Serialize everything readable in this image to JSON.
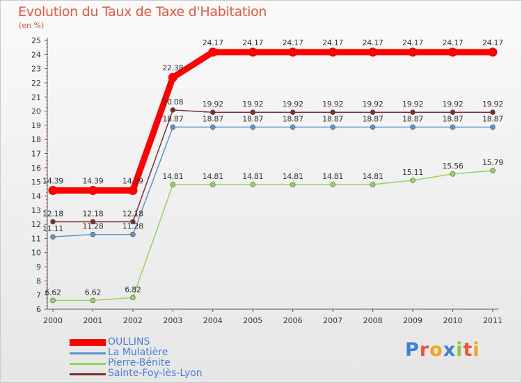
{
  "title": "Evolution du Taux de Taxe d'Habitation",
  "unit_label": "(en %)",
  "logo": {
    "letters": [
      "P",
      "r",
      "o",
      "x",
      "i",
      "t",
      "i"
    ],
    "colors": [
      "#3b7fd6",
      "#e8573a",
      "#f2a31b",
      "#3b7fd6",
      "#8cc63f",
      "#e8573a",
      "#f2a31b"
    ]
  },
  "chart_data": {
    "type": "line",
    "x": [
      "2000",
      "2001",
      "2002",
      "2003",
      "2004",
      "2005",
      "2006",
      "2007",
      "2008",
      "2009",
      "2010",
      "2011"
    ],
    "ylim": [
      6,
      25
    ],
    "yticks": [
      6,
      7,
      8,
      9,
      10,
      11,
      12,
      13,
      14,
      15,
      16,
      17,
      18,
      19,
      20,
      21,
      22,
      23,
      24,
      25
    ],
    "grid": false,
    "legend_position": "bottom-left",
    "series": [
      {
        "name": "OULLINS",
        "color": "#ff0000",
        "values": [
          14.39,
          14.39,
          14.39,
          22.38,
          24.17,
          24.17,
          24.17,
          24.17,
          24.17,
          24.17,
          24.17,
          24.17
        ],
        "labels": [
          "14.39",
          "14.39",
          "14.39",
          "22.38",
          "24.17",
          "24.17",
          "24.17",
          "24.17",
          "24.17",
          "24.17",
          "24.17",
          "24.17"
        ]
      },
      {
        "name": "La Mulatière",
        "color": "#5b93c5",
        "values": [
          11.11,
          11.28,
          11.28,
          18.87,
          18.87,
          18.87,
          18.87,
          18.87,
          18.87,
          18.87,
          18.87,
          18.87
        ],
        "labels": [
          "11.11",
          "11.28",
          "11.28",
          "18.87",
          "18.87",
          "18.87",
          "18.87",
          "18.87",
          "18.87",
          "18.87",
          "18.87",
          "18.87"
        ]
      },
      {
        "name": "Pierre-Bénite",
        "color": "#97d45b",
        "values": [
          6.62,
          6.62,
          6.82,
          14.81,
          14.81,
          14.81,
          14.81,
          14.81,
          14.81,
          15.11,
          15.56,
          15.79
        ],
        "labels": [
          "6.62",
          "6.62",
          "6.82",
          "14.81",
          "14.81",
          "14.81",
          "14.81",
          "14.81",
          "14.81",
          "15.11",
          "15.56",
          "15.79"
        ]
      },
      {
        "name": "Sainte-Foy-lès-Lyon",
        "color": "#7a2e2e",
        "values": [
          12.18,
          12.18,
          12.18,
          20.08,
          19.92,
          19.92,
          19.92,
          19.92,
          19.92,
          19.92,
          19.92,
          19.92
        ],
        "labels": [
          "12.18",
          "12.18",
          "12.18",
          "20.08",
          "19.92",
          "19.92",
          "19.92",
          "19.92",
          "19.92",
          "19.92",
          "19.92",
          "19.92"
        ]
      }
    ]
  }
}
